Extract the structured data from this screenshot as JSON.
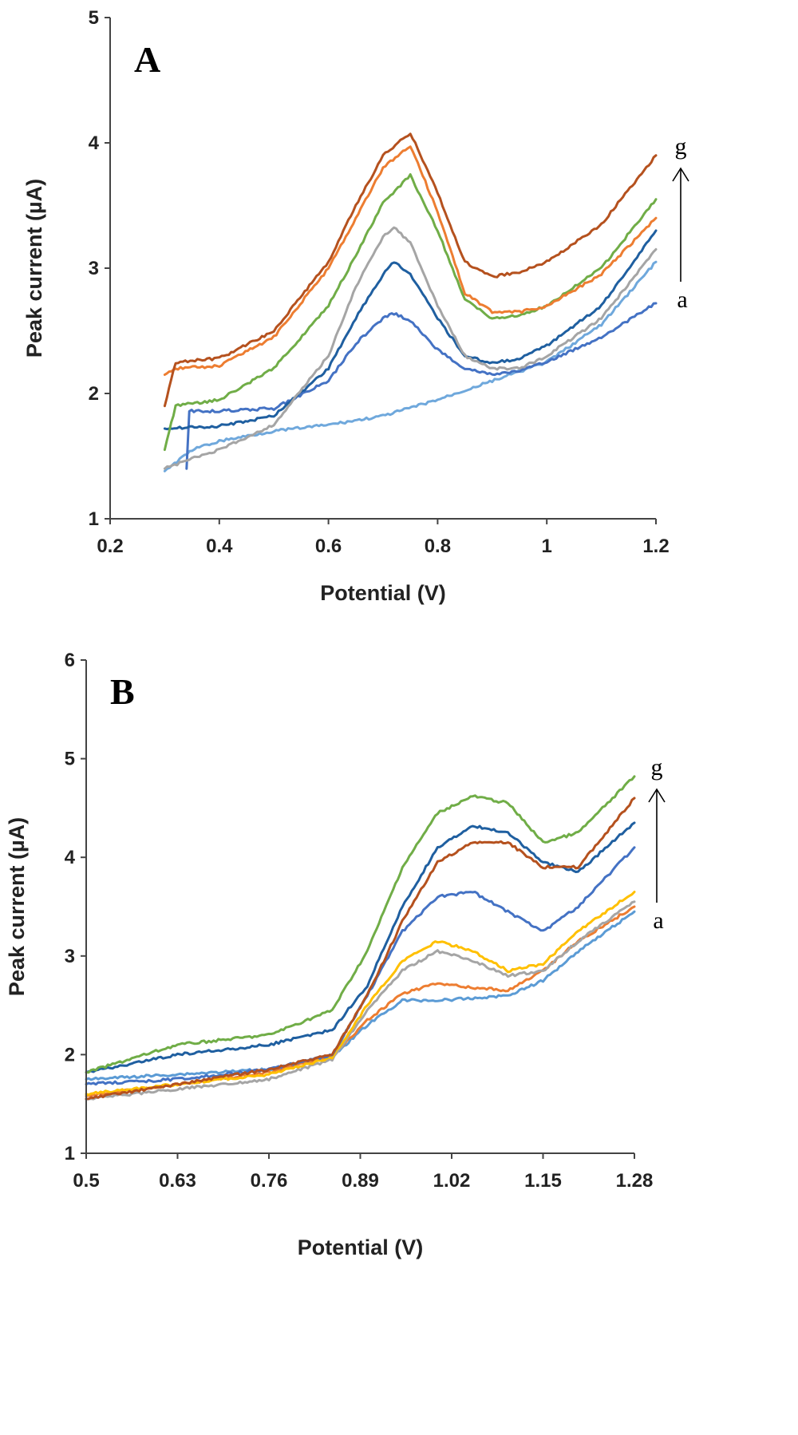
{
  "chart_data": [
    {
      "type": "line",
      "panel_label": "A",
      "xlabel": "Potential (V)",
      "ylabel": "Peak current (µA)",
      "xlim": [
        0.2,
        1.2
      ],
      "ylim": [
        1,
        5
      ],
      "xticks": [
        0.2,
        0.4,
        0.6,
        0.8,
        1,
        1.2
      ],
      "xtick_labels": [
        "0.2",
        "0.4",
        "0.6",
        "0.8",
        "1",
        "1.2"
      ],
      "yticks": [
        1,
        2,
        3,
        4,
        5
      ],
      "ytick_labels": [
        "1",
        "2",
        "3",
        "4",
        "5"
      ],
      "grid": false,
      "series_arrow": {
        "from": "a",
        "to": "g"
      },
      "series": [
        {
          "color": "#6fa8dc",
          "x": [
            0.3,
            0.35,
            0.4,
            0.5,
            0.6,
            0.7,
            0.8,
            0.9,
            1.0,
            1.1,
            1.2
          ],
          "y": [
            1.38,
            1.55,
            1.62,
            1.7,
            1.75,
            1.82,
            1.95,
            2.1,
            2.25,
            2.55,
            3.05
          ]
        },
        {
          "color": "#4472c4",
          "x": [
            0.34,
            0.345,
            0.4,
            0.5,
            0.6,
            0.65,
            0.7,
            0.72,
            0.75,
            0.8,
            0.85,
            0.9,
            0.95,
            1.0,
            1.1,
            1.2
          ],
          "y": [
            1.4,
            1.86,
            1.86,
            1.88,
            2.1,
            2.4,
            2.6,
            2.64,
            2.58,
            2.35,
            2.2,
            2.15,
            2.18,
            2.25,
            2.45,
            2.72
          ]
        },
        {
          "color": "#1f5fa0",
          "x": [
            0.3,
            0.35,
            0.4,
            0.5,
            0.6,
            0.65,
            0.7,
            0.72,
            0.75,
            0.8,
            0.85,
            0.9,
            0.95,
            1.0,
            1.1,
            1.2
          ],
          "y": [
            1.72,
            1.73,
            1.74,
            1.82,
            2.2,
            2.6,
            2.95,
            3.05,
            2.95,
            2.6,
            2.3,
            2.24,
            2.28,
            2.38,
            2.7,
            3.3
          ]
        },
        {
          "color": "#a5a5a5",
          "x": [
            0.3,
            0.35,
            0.4,
            0.5,
            0.6,
            0.65,
            0.7,
            0.72,
            0.75,
            0.8,
            0.85,
            0.9,
            0.95,
            1.0,
            1.1,
            1.2
          ],
          "y": [
            1.4,
            1.48,
            1.55,
            1.75,
            2.3,
            2.85,
            3.25,
            3.33,
            3.2,
            2.7,
            2.3,
            2.2,
            2.2,
            2.3,
            2.6,
            3.15
          ]
        },
        {
          "color": "#70ad47",
          "x": [
            0.3,
            0.32,
            0.4,
            0.5,
            0.6,
            0.65,
            0.7,
            0.75,
            0.8,
            0.85,
            0.9,
            0.95,
            1.0,
            1.1,
            1.2
          ],
          "y": [
            1.55,
            1.9,
            1.95,
            2.2,
            2.7,
            3.1,
            3.52,
            3.74,
            3.3,
            2.75,
            2.6,
            2.62,
            2.7,
            3.0,
            3.55
          ]
        },
        {
          "color": "#ed7d31",
          "x": [
            0.3,
            0.32,
            0.4,
            0.5,
            0.6,
            0.65,
            0.7,
            0.75,
            0.8,
            0.85,
            0.9,
            0.95,
            1.0,
            1.1,
            1.2
          ],
          "y": [
            2.15,
            2.2,
            2.22,
            2.45,
            3.0,
            3.4,
            3.8,
            3.98,
            3.45,
            2.8,
            2.65,
            2.65,
            2.7,
            2.95,
            3.4
          ]
        },
        {
          "color": "#b5511e",
          "x": [
            0.3,
            0.32,
            0.4,
            0.5,
            0.6,
            0.65,
            0.7,
            0.75,
            0.8,
            0.85,
            0.9,
            0.95,
            1.0,
            1.1,
            1.2
          ],
          "y": [
            1.9,
            2.25,
            2.28,
            2.5,
            3.05,
            3.5,
            3.9,
            4.08,
            3.6,
            3.05,
            2.93,
            2.97,
            3.05,
            3.35,
            3.9
          ]
        }
      ]
    },
    {
      "type": "line",
      "panel_label": "B",
      "xlabel": "Potential (V)",
      "ylabel": "Peak current (µA)",
      "xlim": [
        0.5,
        1.28
      ],
      "ylim": [
        1,
        6
      ],
      "xticks": [
        0.5,
        0.63,
        0.76,
        0.89,
        1.02,
        1.15,
        1.28
      ],
      "xtick_labels": [
        "0.5",
        "0.63",
        "0.76",
        "0.89",
        "1.02",
        "1.15",
        "1.28"
      ],
      "yticks": [
        1,
        2,
        3,
        4,
        5,
        6
      ],
      "ytick_labels": [
        "1",
        "2",
        "3",
        "4",
        "5",
        "6"
      ],
      "grid": false,
      "series_arrow": {
        "from": "a",
        "to": "g"
      },
      "series": [
        {
          "color": "#5b9bd5",
          "x": [
            0.5,
            0.63,
            0.76,
            0.85,
            0.9,
            0.95,
            1.0,
            1.05,
            1.1,
            1.15,
            1.2,
            1.28
          ],
          "y": [
            1.75,
            1.8,
            1.85,
            1.98,
            2.3,
            2.55,
            2.55,
            2.57,
            2.6,
            2.75,
            3.05,
            3.45
          ]
        },
        {
          "color": "#ed7d31",
          "x": [
            0.5,
            0.63,
            0.76,
            0.85,
            0.9,
            0.95,
            1.0,
            1.05,
            1.1,
            1.15,
            1.2,
            1.28
          ],
          "y": [
            1.58,
            1.7,
            1.82,
            1.98,
            2.35,
            2.62,
            2.72,
            2.68,
            2.65,
            2.85,
            3.15,
            3.5
          ]
        },
        {
          "color": "#a5a5a5",
          "x": [
            0.5,
            0.63,
            0.76,
            0.85,
            0.9,
            0.95,
            1.0,
            1.05,
            1.1,
            1.15,
            1.2,
            1.28
          ],
          "y": [
            1.55,
            1.65,
            1.75,
            1.95,
            2.45,
            2.85,
            3.05,
            2.95,
            2.8,
            2.85,
            3.15,
            3.55
          ]
        },
        {
          "color": "#ffc000",
          "x": [
            0.5,
            0.63,
            0.76,
            0.85,
            0.9,
            0.95,
            1.0,
            1.05,
            1.1,
            1.15,
            1.2,
            1.28
          ],
          "y": [
            1.6,
            1.7,
            1.8,
            1.97,
            2.5,
            2.95,
            3.15,
            3.05,
            2.85,
            2.92,
            3.25,
            3.65
          ]
        },
        {
          "color": "#4472c4",
          "x": [
            0.5,
            0.63,
            0.76,
            0.85,
            0.9,
            0.95,
            1.0,
            1.05,
            1.1,
            1.15,
            1.2,
            1.28
          ],
          "y": [
            1.7,
            1.75,
            1.85,
            2.0,
            2.6,
            3.25,
            3.6,
            3.65,
            3.45,
            3.25,
            3.5,
            4.1
          ]
        },
        {
          "color": "#1f5fa0",
          "x": [
            0.5,
            0.63,
            0.76,
            0.85,
            0.9,
            0.95,
            1.0,
            1.05,
            1.1,
            1.15,
            1.2,
            1.28
          ],
          "y": [
            1.82,
            2.0,
            2.1,
            2.25,
            2.7,
            3.5,
            4.1,
            4.32,
            4.25,
            3.95,
            3.85,
            4.35
          ]
        },
        {
          "color": "#b5511e",
          "x": [
            0.5,
            0.63,
            0.76,
            0.85,
            0.9,
            0.95,
            1.0,
            1.05,
            1.1,
            1.15,
            1.2,
            1.28
          ],
          "y": [
            1.55,
            1.7,
            1.85,
            2.0,
            2.6,
            3.35,
            3.95,
            4.15,
            4.15,
            3.9,
            3.9,
            4.6
          ]
        },
        {
          "color": "#70ad47",
          "x": [
            0.5,
            0.63,
            0.76,
            0.85,
            0.9,
            0.95,
            1.0,
            1.05,
            1.1,
            1.15,
            1.2,
            1.28
          ],
          "y": [
            1.82,
            2.1,
            2.2,
            2.45,
            3.05,
            3.9,
            4.45,
            4.62,
            4.55,
            4.15,
            4.25,
            4.82
          ]
        }
      ]
    }
  ]
}
